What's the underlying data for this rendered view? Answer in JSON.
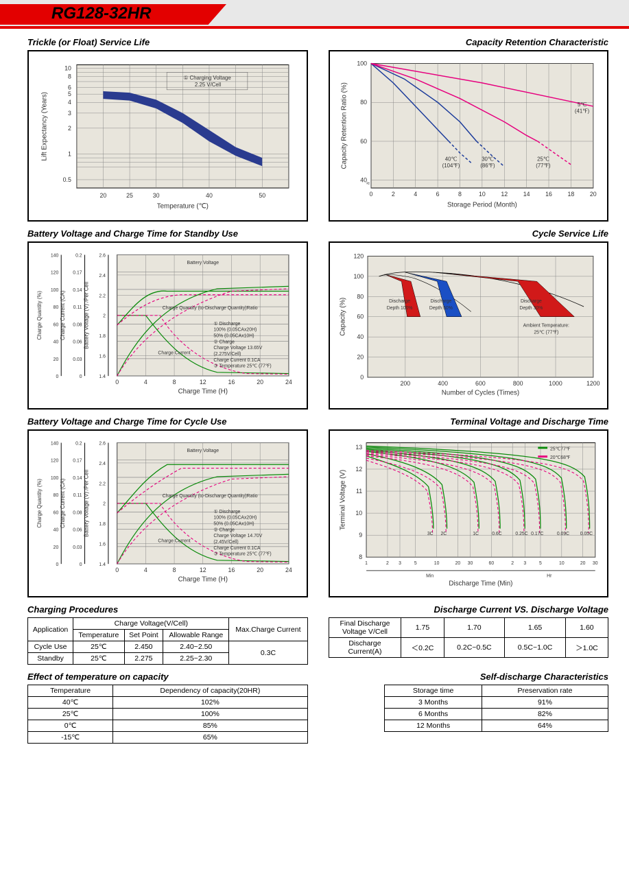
{
  "header": {
    "model": "RG128-32HR"
  },
  "charts": {
    "trickle": {
      "title": "Trickle (or Float) Service Life",
      "xlabel": "Temperature (℃)",
      "ylabel": "Lift  Expectancy (Years) ",
      "xticks": [
        20,
        25,
        30,
        40,
        50
      ],
      "yticks": [
        0.5,
        1,
        2,
        3,
        4,
        5,
        6,
        8,
        10
      ],
      "annotation": "① Charging Voltage\n    2.25 V/Cell",
      "band_upper": [
        [
          20,
          5.4
        ],
        [
          25,
          5.2
        ],
        [
          30,
          4.3
        ],
        [
          35,
          3.0
        ],
        [
          40,
          1.9
        ],
        [
          45,
          1.2
        ],
        [
          50,
          0.9
        ]
      ],
      "band_lower": [
        [
          20,
          4.4
        ],
        [
          25,
          4.2
        ],
        [
          30,
          3.4
        ],
        [
          35,
          2.3
        ],
        [
          40,
          1.4
        ],
        [
          45,
          0.95
        ],
        [
          50,
          0.72
        ]
      ],
      "band_color": "#2a3b8f",
      "bg": "#e8e5dc",
      "grid": "#888"
    },
    "capacity_retention": {
      "title": "Capacity Retention Characteristic",
      "xlabel": "Storage Period (Month)",
      "ylabel": "Capacity Retention Ratio (%)",
      "xticks": [
        0,
        2,
        4,
        6,
        8,
        10,
        12,
        14,
        16,
        18,
        20
      ],
      "yticks": [
        40,
        60,
        80,
        100
      ],
      "curves": [
        {
          "label": "40℃\n(104℉)",
          "color": "#1a3a9a",
          "solid": [
            [
              0,
              100
            ],
            [
              2,
              90
            ],
            [
              4,
              78
            ],
            [
              6,
              66
            ],
            [
              7,
              60
            ]
          ],
          "dash": [
            [
              7,
              60
            ],
            [
              8,
              54
            ],
            [
              9,
              49
            ]
          ]
        },
        {
          "label": "30℃\n(86℉)",
          "color": "#1a3a9a",
          "solid": [
            [
              0,
              100
            ],
            [
              3,
              92
            ],
            [
              6,
              80
            ],
            [
              8,
              70
            ],
            [
              9.5,
              60
            ]
          ],
          "dash": [
            [
              9.5,
              60
            ],
            [
              11,
              52
            ],
            [
              12,
              47
            ]
          ]
        },
        {
          "label": "25℃\n(77℉)",
          "color": "#e6007e",
          "solid": [
            [
              0,
              100
            ],
            [
              4,
              92
            ],
            [
              8,
              82
            ],
            [
              12,
              70
            ],
            [
              14,
              63
            ],
            [
              15,
              60
            ]
          ],
          "dash": [
            [
              15,
              60
            ],
            [
              17,
              52
            ],
            [
              18,
              48
            ]
          ]
        },
        {
          "label": "5℃\n(41℉)",
          "color": "#e6007e",
          "solid": [
            [
              0,
              100
            ],
            [
              10,
              90
            ],
            [
              20,
              78
            ]
          ],
          "dash": []
        }
      ],
      "bg": "#e8e5dc",
      "grid": "#888"
    },
    "standby_charge": {
      "title": "Battery Voltage and Charge Time for Standby Use",
      "xlabel": "Charge Time (H)",
      "y1": "Charge Quantity (%)",
      "y2": "Charge Current (CA)",
      "y3": "Battery Voltage (V) /Per Cell",
      "xticks": [
        0,
        4,
        8,
        12,
        16,
        20,
        24
      ],
      "y1ticks": [
        0,
        20,
        40,
        60,
        80,
        100,
        120,
        140
      ],
      "y2ticks": [
        0,
        0.03,
        0.06,
        0.08,
        0.11,
        0.14,
        0.17,
        0.2
      ],
      "y3ticks": [
        1.4,
        1.6,
        1.8,
        2.0,
        2.2,
        2.4,
        2.6
      ],
      "note": "① Discharge\n    100% (0.05CAx20H)\n    50%  (0.05CAx10H)\n② Charge\n    Charge Voltage 13.65V\n    (2.275V/Cell)\n    Charge Current 0.1CA\n③ Temperature 25℃ (77℉)",
      "bg": "#e8e5dc",
      "grid": "#888"
    },
    "cycle_life": {
      "title": "Cycle Service Life",
      "xlabel": "Number of Cycles (Times)",
      "ylabel": "Capacity (%)",
      "xticks": [
        0,
        200,
        400,
        600,
        800,
        1000,
        1200
      ],
      "yticks": [
        0,
        20,
        40,
        60,
        80,
        100,
        120
      ],
      "wedges": [
        {
          "label": "Discharge\nDepth 100%",
          "color": "#d11919",
          "pts": [
            [
              90,
              102
            ],
            [
              230,
              95
            ],
            [
              280,
              60
            ],
            [
              210,
              60
            ],
            [
              180,
              95
            ]
          ]
        },
        {
          "label": "Discharge\nDepth 50%",
          "color": "#1a4fc4",
          "pts": [
            [
              200,
              104
            ],
            [
              420,
              95
            ],
            [
              500,
              60
            ],
            [
              420,
              60
            ],
            [
              370,
              95
            ]
          ]
        },
        {
          "label": "Discharge\nDepth 30%",
          "color": "#d11919",
          "pts": [
            [
              350,
              104
            ],
            [
              900,
              95
            ],
            [
              1100,
              60
            ],
            [
              920,
              60
            ],
            [
              800,
              95
            ]
          ]
        }
      ],
      "ambient": "Ambient Temperature:\n25℃ (77℉)",
      "bg": "#e8e5dc",
      "grid": "#888"
    },
    "cycle_charge": {
      "title": "Battery Voltage and Charge Time for Cycle Use",
      "xlabel": "Charge Time (H)",
      "y1": "Charge Quantity (%)",
      "y2": "Charge Current (CA)",
      "y3": "Battery Voltage (V) /Per Cell",
      "xticks": [
        0,
        4,
        8,
        12,
        16,
        20,
        24
      ],
      "y1ticks": [
        0,
        20,
        40,
        60,
        80,
        100,
        120,
        140
      ],
      "y2ticks": [
        0,
        0.03,
        0.06,
        0.08,
        0.11,
        0.14,
        0.17,
        0.2
      ],
      "y3ticks": [
        1.4,
        1.6,
        1.8,
        2.0,
        2.2,
        2.4,
        2.6
      ],
      "note": "① Discharge\n    100% (0.05CAx20H)\n    50%  (0.05CAx10H)\n② Charge\n    Charge Voltage 14.70V\n    (2.45V/Cell)\n    Charge Current 0.1CA\n③ Temperature 25℃ (77℉)",
      "bg": "#e8e5dc",
      "grid": "#888"
    },
    "terminal_voltage": {
      "title": "Terminal Voltage and Discharge Time",
      "xlabel": "Discharge Time (Min)",
      "ylabel": "Terminal Voltage (V)",
      "yticks": [
        8,
        9,
        10,
        11,
        12,
        13
      ],
      "xsegs": [
        "1",
        "2",
        "3",
        "5",
        "10",
        "20",
        "30",
        "60",
        "2",
        "3",
        "5",
        "10",
        "20",
        "30"
      ],
      "legend": [
        {
          "c": "#0a8a0a",
          "t": "25℃77℉"
        },
        {
          "c": "#e6007e",
          "t": "20℃68℉"
        }
      ],
      "rates": [
        "3C",
        "2C",
        "1C",
        "0.6C",
        "0.25C",
        "0.17C",
        "0.09C",
        "0.05C"
      ],
      "bg": "#e8e5dc",
      "grid": "#888"
    }
  },
  "tables": {
    "charging_procedures": {
      "title": "Charging Procedures",
      "headers": [
        "Application",
        "Charge Voltage(V/Cell)",
        "Max.Charge Current"
      ],
      "sub": [
        "Temperature",
        "Set Point",
        "Allowable Range"
      ],
      "rows": [
        [
          "Cycle Use",
          "25℃",
          "2.450",
          "2.40~2.50"
        ],
        [
          "Standby",
          "25℃",
          "2.275",
          "2.25~2.30"
        ]
      ],
      "max_current": "0.3C"
    },
    "discharge_vs_voltage": {
      "title": "Discharge Current VS. Discharge Voltage",
      "r1": [
        "Final Discharge Voltage V/Cell",
        "1.75",
        "1.70",
        "1.65",
        "1.60"
      ],
      "r2": [
        "Discharge Current(A)",
        "＜0.2C",
        "0.2C~0.5C",
        "0.5C~1.0C",
        "＞1.0C"
      ]
    },
    "temp_capacity": {
      "title": "Effect of temperature on capacity",
      "headers": [
        "Temperature",
        "Dependency of capacity(20HR)"
      ],
      "rows": [
        [
          "40℃",
          "102%"
        ],
        [
          "25℃",
          "100%"
        ],
        [
          "0℃",
          "85%"
        ],
        [
          "-15℃",
          "65%"
        ]
      ]
    },
    "self_discharge": {
      "title": "Self-discharge Characteristics",
      "headers": [
        "Storage time",
        "Preservation rate"
      ],
      "rows": [
        [
          "3 Months",
          "91%"
        ],
        [
          "6 Months",
          "82%"
        ],
        [
          "12 Months",
          "64%"
        ]
      ]
    }
  }
}
